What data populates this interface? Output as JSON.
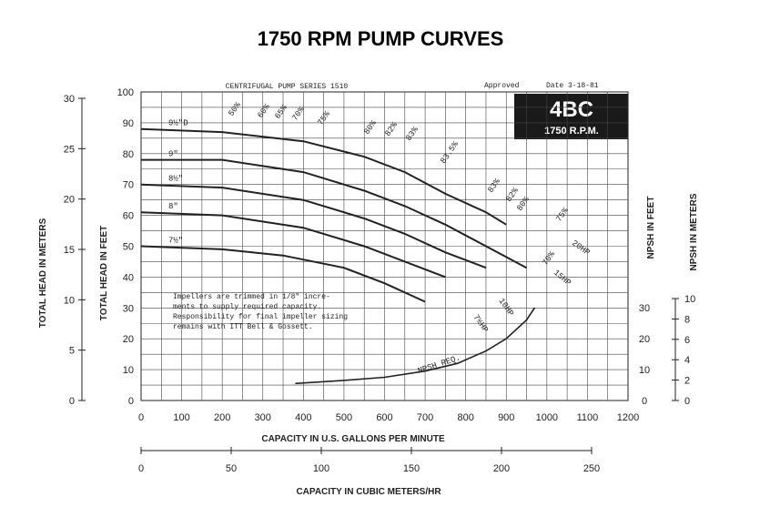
{
  "chart_data": {
    "type": "line",
    "title": "1750 RPM PUMP CURVES",
    "subtitle": "CENTRIFUGAL PUMP SERIES 1510",
    "approval": "Approved",
    "date": "Date 3-18-81",
    "model_badge": {
      "model": "4BC",
      "speed": "1750 R.P.M."
    },
    "note": [
      "Impellers are trimmed in 1/8\" incre-",
      "ments to supply required capacity.",
      "Responsibility for final impeller sizing",
      "remains with ITT Bell & Gossett."
    ],
    "xlabel": "CAPACITY IN U.S. GALLONS PER MINUTE",
    "x2label": "CAPACITY IN CUBIC METERS/HR",
    "ylabel_feet": "TOTAL HEAD IN FEET",
    "ylabel_meters": "TOTAL HEAD IN METERS",
    "ylabel_npsh_feet": "NPSH IN FEET",
    "ylabel_npsh_meters": "NPSH IN METERS",
    "xlim": [
      0,
      1200
    ],
    "ylim": [
      0,
      100
    ],
    "x2lim": [
      0,
      250
    ],
    "grid": true,
    "x_ticks": [
      "0",
      "100",
      "200",
      "300",
      "400",
      "500",
      "600",
      "700",
      "800",
      "900",
      "1000",
      "1100",
      "1200"
    ],
    "y_ticks": [
      "0",
      "10",
      "20",
      "30",
      "40",
      "50",
      "60",
      "70",
      "80",
      "90",
      "100"
    ],
    "y_meters_ticks": [
      "0",
      "5",
      "10",
      "15",
      "20",
      "25",
      "30"
    ],
    "x2_ticks": [
      "0",
      "50",
      "100",
      "150",
      "200",
      "250"
    ],
    "npsh_feet_ticks": [
      "0",
      "10",
      "20",
      "30"
    ],
    "npsh_meters_ticks": [
      "0",
      "2",
      "4",
      "6",
      "8",
      "10"
    ],
    "impeller_curves": [
      {
        "name": "9½\"D",
        "x": [
          0,
          200,
          400,
          550,
          650,
          750,
          850,
          900
        ],
        "y": [
          88,
          87,
          84,
          79,
          74,
          67,
          61,
          57
        ]
      },
      {
        "name": "9\"",
        "x": [
          0,
          200,
          400,
          550,
          650,
          750,
          850,
          950
        ],
        "y": [
          78,
          78,
          74,
          68,
          63,
          57,
          50,
          43
        ]
      },
      {
        "name": "8½\"",
        "x": [
          0,
          200,
          400,
          550,
          650,
          750,
          850
        ],
        "y": [
          70,
          69,
          65,
          59,
          54,
          48,
          43
        ]
      },
      {
        "name": "8\"",
        "x": [
          0,
          200,
          400,
          550,
          650,
          750
        ],
        "y": [
          61,
          60,
          56,
          50,
          45,
          40
        ]
      },
      {
        "name": "7½\"",
        "x": [
          0,
          200,
          350,
          500,
          600,
          700
        ],
        "y": [
          50,
          49,
          47,
          43,
          38,
          32
        ]
      }
    ],
    "efficiency_labels": [
      "50%",
      "60%",
      "65%",
      "70%",
      "75%",
      "80%",
      "82%",
      "83%",
      "83.5%",
      "83%",
      "82%",
      "80%",
      "75%",
      "70%"
    ],
    "horsepower_labels": [
      "7½HP",
      "10HP",
      "15HP",
      "20HP"
    ],
    "npsh_label": "NPSH REQ.",
    "npsh_curve": {
      "x": [
        380,
        500,
        600,
        700,
        780,
        850,
        900,
        950,
        970
      ],
      "y": [
        5.5,
        6.5,
        7.5,
        9.5,
        12,
        16,
        20,
        26,
        30
      ]
    }
  }
}
